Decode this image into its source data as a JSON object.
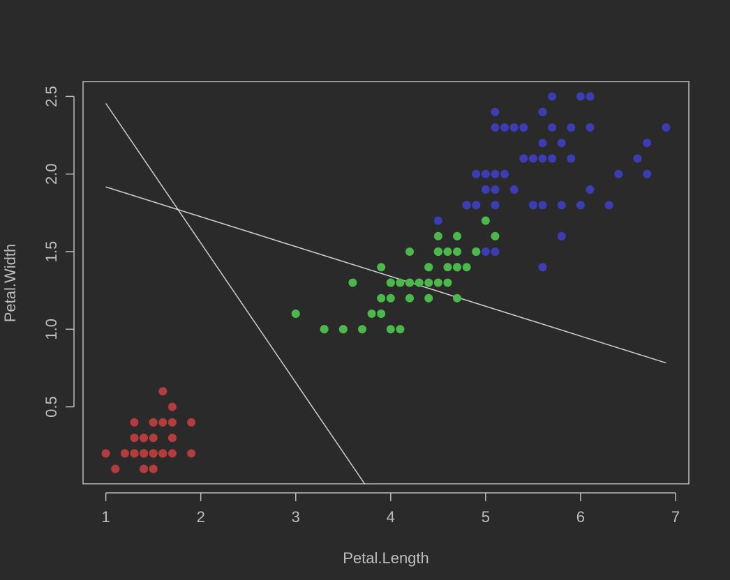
{
  "chart_data": {
    "type": "scatter",
    "title": "",
    "xlabel": "Petal.Length",
    "ylabel": "Petal.Width",
    "xlim": [
      0.76,
      7.14
    ],
    "ylim": [
      0.004,
      2.596
    ],
    "x_ticks": [
      1,
      2,
      3,
      4,
      5,
      6,
      7
    ],
    "y_ticks": [
      0.5,
      1.0,
      1.5,
      2.0,
      2.5
    ],
    "y_tick_labels": [
      "0.5",
      "1.0",
      "1.5",
      "2.0",
      "2.5"
    ],
    "grid": false,
    "legend": "none",
    "colors": {
      "background": "#2a2a2a",
      "axes": "#bdbdbd",
      "line": "#cfcfcf"
    },
    "series": [
      {
        "color": "#b43c3c",
        "x": [
          1.4,
          1.4,
          1.3,
          1.5,
          1.4,
          1.7,
          1.4,
          1.5,
          1.4,
          1.5,
          1.5,
          1.6,
          1.4,
          1.1,
          1.2,
          1.5,
          1.3,
          1.4,
          1.7,
          1.5,
          1.7,
          1.5,
          1.0,
          1.7,
          1.9,
          1.6,
          1.6,
          1.5,
          1.4,
          1.6,
          1.6,
          1.5,
          1.5,
          1.4,
          1.5,
          1.2,
          1.3,
          1.4,
          1.3,
          1.5,
          1.3,
          1.3,
          1.3,
          1.6,
          1.9,
          1.4,
          1.6,
          1.4,
          1.5,
          1.4
        ],
        "y": [
          0.2,
          0.2,
          0.2,
          0.2,
          0.2,
          0.4,
          0.3,
          0.2,
          0.2,
          0.1,
          0.2,
          0.2,
          0.1,
          0.1,
          0.2,
          0.4,
          0.4,
          0.3,
          0.3,
          0.3,
          0.2,
          0.4,
          0.2,
          0.5,
          0.2,
          0.2,
          0.4,
          0.2,
          0.2,
          0.2,
          0.2,
          0.4,
          0.1,
          0.2,
          0.2,
          0.2,
          0.2,
          0.1,
          0.2,
          0.2,
          0.3,
          0.3,
          0.2,
          0.6,
          0.4,
          0.3,
          0.2,
          0.2,
          0.2,
          0.2
        ]
      },
      {
        "color": "#4cb84c",
        "x": [
          4.7,
          4.5,
          4.9,
          4.0,
          4.6,
          4.5,
          4.7,
          3.3,
          4.6,
          3.9,
          3.5,
          4.2,
          4.0,
          4.7,
          3.6,
          4.4,
          4.5,
          4.1,
          4.5,
          3.9,
          4.8,
          4.0,
          4.9,
          4.7,
          4.3,
          4.4,
          4.8,
          5.0,
          4.5,
          3.5,
          3.8,
          3.7,
          3.9,
          5.1,
          4.5,
          4.5,
          4.7,
          4.4,
          4.1,
          4.0,
          4.4,
          4.6,
          4.0,
          3.3,
          4.2,
          4.2,
          4.2,
          4.3,
          3.0,
          4.1
        ],
        "y": [
          1.4,
          1.5,
          1.5,
          1.3,
          1.5,
          1.3,
          1.6,
          1.0,
          1.3,
          1.4,
          1.0,
          1.5,
          1.0,
          1.4,
          1.3,
          1.4,
          1.5,
          1.0,
          1.5,
          1.1,
          1.8,
          1.3,
          1.5,
          1.2,
          1.3,
          1.4,
          1.4,
          1.7,
          1.5,
          1.0,
          1.1,
          1.0,
          1.2,
          1.6,
          1.5,
          1.6,
          1.5,
          1.3,
          1.3,
          1.3,
          1.2,
          1.4,
          1.2,
          1.0,
          1.3,
          1.2,
          1.3,
          1.3,
          1.1,
          1.3
        ]
      },
      {
        "color": "#3c3cb4",
        "x": [
          6.0,
          5.1,
          5.9,
          5.6,
          5.8,
          6.6,
          4.5,
          6.3,
          5.8,
          6.1,
          5.1,
          5.3,
          5.5,
          5.0,
          5.1,
          5.3,
          5.5,
          6.7,
          6.9,
          5.0,
          5.7,
          4.9,
          6.7,
          4.9,
          5.7,
          6.0,
          4.8,
          4.9,
          5.6,
          5.8,
          6.1,
          6.4,
          5.6,
          5.1,
          5.6,
          6.1,
          5.6,
          5.5,
          4.8,
          5.4,
          5.6,
          5.1,
          5.1,
          5.9,
          5.7,
          5.2,
          5.0,
          5.2,
          5.4,
          5.1
        ],
        "y": [
          2.5,
          1.9,
          2.1,
          1.8,
          2.2,
          2.1,
          1.7,
          1.8,
          1.8,
          2.5,
          2.0,
          1.9,
          2.1,
          2.0,
          2.4,
          2.3,
          1.8,
          2.2,
          2.3,
          1.5,
          2.3,
          2.0,
          2.0,
          1.8,
          2.1,
          1.8,
          1.8,
          1.8,
          2.1,
          1.6,
          1.9,
          2.0,
          2.2,
          1.5,
          1.4,
          2.3,
          2.4,
          1.8,
          1.8,
          2.1,
          2.4,
          2.3,
          1.9,
          2.3,
          2.5,
          2.3,
          1.9,
          2.0,
          2.3,
          1.8
        ]
      }
    ],
    "lines": [
      {
        "x": [
          1.0,
          3.73
        ],
        "y": [
          2.455,
          0.0
        ]
      },
      {
        "x": [
          1.0,
          6.9
        ],
        "y": [
          1.917,
          0.783
        ]
      }
    ]
  }
}
